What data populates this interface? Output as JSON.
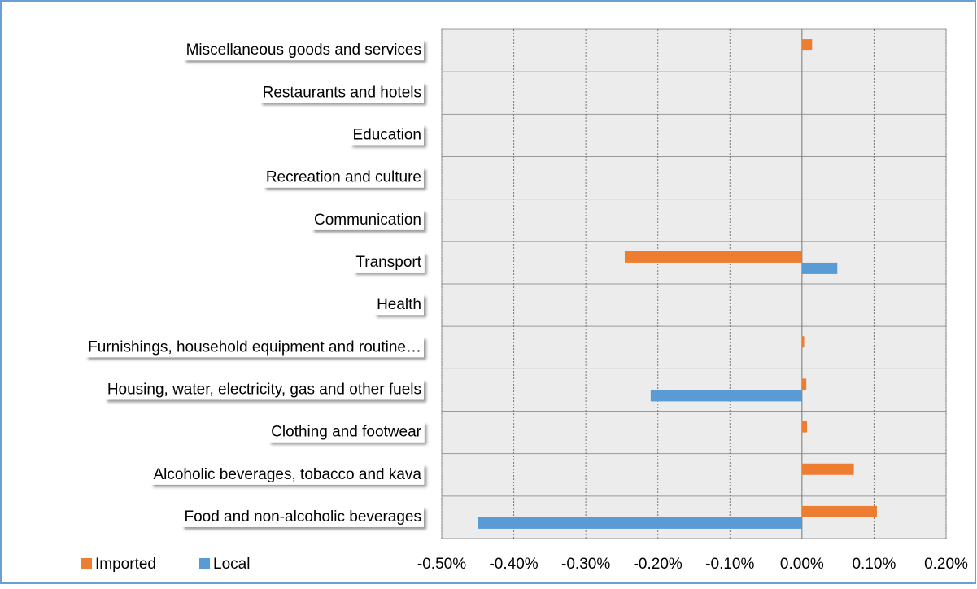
{
  "chart_data": {
    "type": "hbar",
    "categories": [
      "Miscellaneous goods and services",
      "Restaurants and hotels",
      "Education",
      "Recreation and culture",
      "Communication",
      "Transport",
      "Health",
      "Furnishings, household equipment and routine…",
      "Housing, water, electricity, gas and other fuels",
      "Clothing and footwear",
      "Alcoholic beverages, tobacco and kava",
      "Food and non-alcoholic beverages"
    ],
    "series": [
      {
        "name": "Imported",
        "color": "#ed7d31",
        "values": [
          0.014,
          0,
          0,
          0,
          0,
          -0.246,
          0,
          0.003,
          0.006,
          0.007,
          0.072,
          0.104
        ]
      },
      {
        "name": "Local",
        "color": "#5b9bd5",
        "values": [
          0,
          0,
          0,
          0,
          0,
          0.049,
          0,
          0,
          -0.21,
          0,
          0,
          -0.45
        ]
      }
    ],
    "xlim": [
      -0.5,
      0.2
    ],
    "xticks": [
      {
        "value": -0.5,
        "label": "-0.50%"
      },
      {
        "value": -0.4,
        "label": "-0.40%"
      },
      {
        "value": -0.3,
        "label": "-0.30%"
      },
      {
        "value": -0.2,
        "label": "-0.20%"
      },
      {
        "value": -0.1,
        "label": "-0.10%"
      },
      {
        "value": 0,
        "label": "0.00%"
      },
      {
        "value": 0.1,
        "label": "0.10%"
      },
      {
        "value": 0.2,
        "label": "0.20%"
      }
    ],
    "grid": true,
    "legend": "bottom-left"
  }
}
